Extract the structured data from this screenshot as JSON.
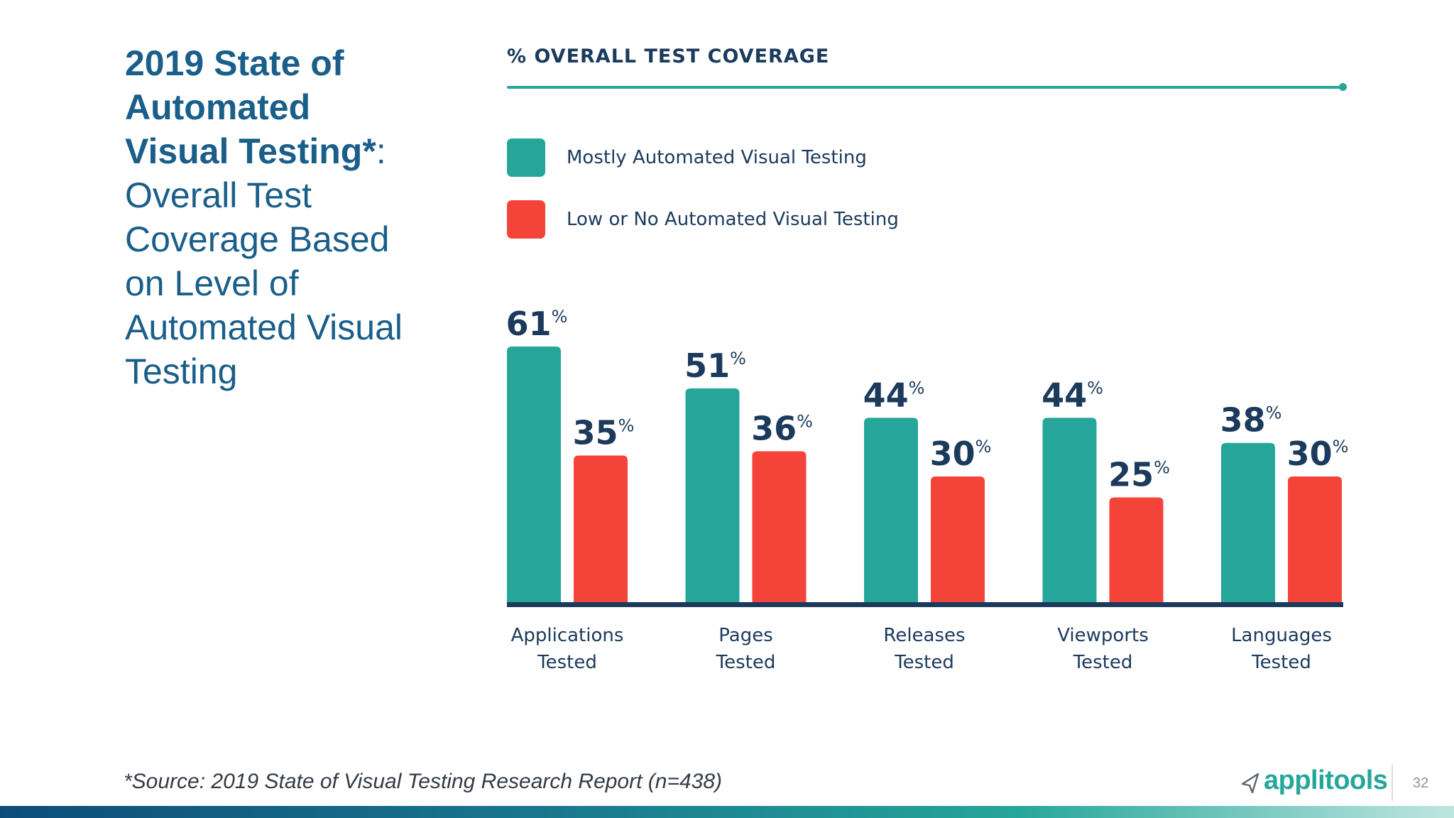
{
  "title": {
    "bold_lines": [
      "2019 State of",
      "Automated",
      "Visual Testing*"
    ],
    "colon": ":",
    "regular_lines": [
      "Overall Test",
      "Coverage Based",
      "on Level of",
      "Automated Visual",
      "Testing"
    ]
  },
  "colors": {
    "title": "#1a5e8a",
    "teal": "#26a69a",
    "red": "#f4443a",
    "navy": "#1b3a5c"
  },
  "chart_data": {
    "type": "bar",
    "title": "% OVERALL TEST COVERAGE",
    "legend_position": "top-left",
    "categories": [
      [
        "Applications",
        "Tested"
      ],
      [
        "Pages",
        "Tested"
      ],
      [
        "Releases",
        "Tested"
      ],
      [
        "Viewports",
        "Tested"
      ],
      [
        "Languages",
        "Tested"
      ]
    ],
    "series": [
      {
        "name": "Mostly Automated Visual Testing",
        "color": "#26a69a",
        "values": [
          61,
          51,
          44,
          44,
          38
        ]
      },
      {
        "name": "Low or No Automated Visual Testing",
        "color": "#f4443a",
        "values": [
          35,
          36,
          30,
          25,
          30
        ]
      }
    ],
    "value_suffix": "%",
    "ylim": [
      0,
      61
    ]
  },
  "footnote": "*Source: 2019 State of Visual Testing Research Report (n=438)",
  "brand": {
    "name": "applitools",
    "icon": "paper-plane-icon"
  },
  "page_number": "32"
}
